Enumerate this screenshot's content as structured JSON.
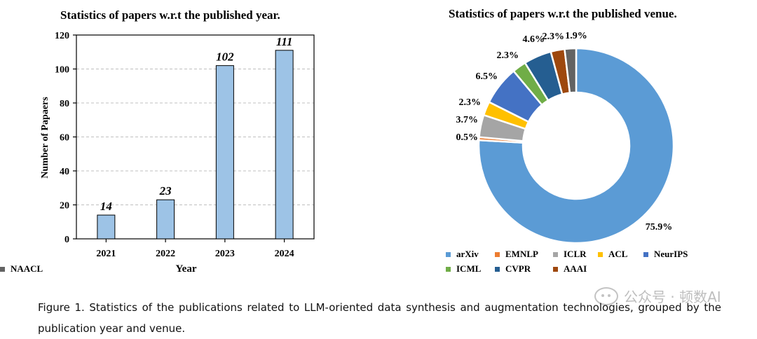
{
  "caption": "Figure 1. Statistics of the publications related to LLM-oriented data synthesis and augmentation technologies, grouped by the publication year and venue.",
  "watermark": "公众号 · 顿数AI",
  "chart_data": [
    {
      "type": "bar",
      "title": "Statistics of papers w.r.t the published year.",
      "xlabel": "Year",
      "ylabel": "Number of Papaers",
      "categories": [
        "2021",
        "2022",
        "2023",
        "2024"
      ],
      "values": [
        14,
        23,
        102,
        111
      ],
      "data_labels": [
        "14",
        "23",
        "102",
        "111"
      ],
      "ylim": [
        0,
        120
      ],
      "yticks": [
        "0",
        "20",
        "40",
        "60",
        "80",
        "100",
        "120"
      ],
      "grid": "horizontal dashed",
      "bar_color": "#9dc3e6"
    },
    {
      "type": "pie",
      "variant": "donut",
      "title": "Statistics of papers w.r.t the published venue.",
      "legend_position": "bottom",
      "slices": [
        {
          "name": "arXiv",
          "value": 75.9,
          "label": "75.9%",
          "color": "#5b9bd5"
        },
        {
          "name": "EMNLP",
          "value": 0.5,
          "label": "0.5%",
          "color": "#ed7d31"
        },
        {
          "name": "ICLR",
          "value": 3.7,
          "label": "3.7%",
          "color": "#a5a5a5"
        },
        {
          "name": "ACL",
          "value": 2.3,
          "label": "2.3%",
          "color": "#ffc000"
        },
        {
          "name": "NeurIPS",
          "value": 6.5,
          "label": "6.5%",
          "color": "#4472c4"
        },
        {
          "name": "ICML",
          "value": 2.3,
          "label": "2.3%",
          "color": "#70ad47"
        },
        {
          "name": "CVPR",
          "value": 4.6,
          "label": "4.6%",
          "color": "#255e91"
        },
        {
          "name": "AAAI",
          "value": 2.3,
          "label": "2.3%",
          "color": "#9e480e"
        },
        {
          "name": "NAACL",
          "value": 1.9,
          "label": "1.9%",
          "color": "#636363"
        }
      ]
    }
  ]
}
